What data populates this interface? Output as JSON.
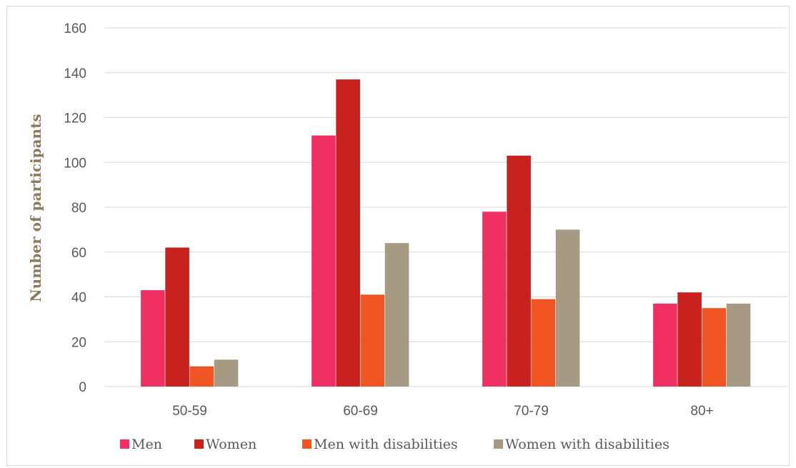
{
  "chart_data": {
    "type": "bar",
    "categories": [
      "50-59",
      "60-69",
      "70-79",
      "80+"
    ],
    "series": [
      {
        "name": "Men",
        "values": [
          43,
          112,
          78,
          37
        ],
        "color": "#f03063"
      },
      {
        "name": "Women",
        "values": [
          62,
          137,
          103,
          42
        ],
        "color": "#c8221e"
      },
      {
        "name": "Men with disabilities",
        "values": [
          9,
          41,
          39,
          35
        ],
        "color": "#f05523"
      },
      {
        "name": "Women with disabilities",
        "values": [
          12,
          64,
          70,
          37
        ],
        "color": "#a69a85"
      }
    ],
    "ylabel": "Number of participants",
    "xlabel": "",
    "ylim": [
      0,
      160
    ],
    "yticks": [
      0,
      20,
      40,
      60,
      80,
      100,
      120,
      140,
      160
    ],
    "grid": true,
    "legend_position": "bottom"
  }
}
